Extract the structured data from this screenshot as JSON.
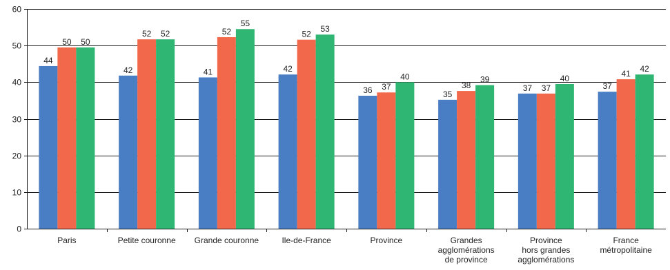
{
  "chart_data": {
    "type": "bar",
    "title": "",
    "xlabel": "",
    "ylabel": "",
    "ylim": [
      0,
      60
    ],
    "yticks": [
      0,
      10,
      20,
      30,
      40,
      50,
      60
    ],
    "grid": true,
    "legend": "none",
    "categories": [
      [
        "Paris"
      ],
      [
        "Petite couronne"
      ],
      [
        "Grande couronne"
      ],
      [
        "Ile-de-France"
      ],
      [
        "Province"
      ],
      [
        "Grandes",
        "agglomérations",
        "de province"
      ],
      [
        "Province",
        "hors grandes",
        "agglomérations"
      ],
      [
        "France",
        "métropolitaine"
      ]
    ],
    "series": [
      {
        "color": "#4a7ec4",
        "values": [
          44,
          42,
          41,
          42,
          36,
          35,
          37,
          37
        ],
        "heights": [
          44.4,
          41.8,
          41.3,
          42.1,
          36.3,
          35.2,
          36.9,
          37.4
        ]
      },
      {
        "color": "#f2684b",
        "values": [
          50,
          52,
          52,
          52,
          37,
          38,
          37,
          41
        ],
        "heights": [
          49.5,
          51.7,
          52.3,
          51.6,
          37.2,
          37.6,
          36.9,
          40.8
        ]
      },
      {
        "color": "#2fb672",
        "values": [
          50,
          52,
          55,
          53,
          40,
          39,
          40,
          42
        ],
        "heights": [
          49.5,
          51.7,
          54.5,
          53.0,
          40.0,
          39.2,
          39.5,
          42.1
        ]
      }
    ]
  }
}
